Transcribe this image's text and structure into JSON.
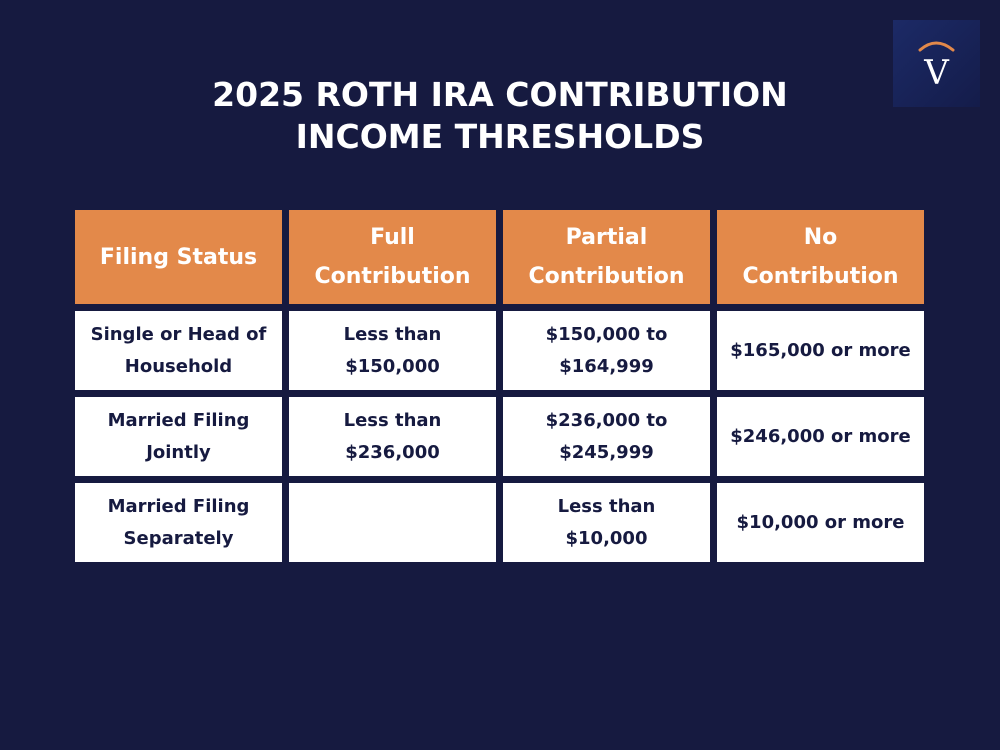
{
  "title": {
    "line1": "2025 ROTH IRA CONTRIBUTION",
    "line2": "INCOME THRESHOLDS"
  },
  "logo": {
    "letter": "V",
    "arc_color": "#e3894a"
  },
  "colors": {
    "background": "#161a40",
    "header": "#e3894a",
    "cell": "#ffffff",
    "text": "#161a40"
  },
  "table": {
    "headers": [
      [
        "Filing Status"
      ],
      [
        "Full",
        "Contribution"
      ],
      [
        "Partial",
        "Contribution"
      ],
      [
        "No",
        "Contribution"
      ]
    ],
    "rows": [
      [
        [
          "Single or Head of",
          "Household"
        ],
        [
          "Less than",
          "$150,000"
        ],
        [
          "$150,000 to",
          "$164,999"
        ],
        [
          "$165,000 or more"
        ]
      ],
      [
        [
          "Married Filing",
          "Jointly"
        ],
        [
          "Less than",
          "$236,000"
        ],
        [
          "$236,000 to",
          "$245,999"
        ],
        [
          "$246,000 or more"
        ]
      ],
      [
        [
          "Married Filing",
          "Separately"
        ],
        [],
        [
          "Less than",
          "$10,000"
        ],
        [
          "$10,000 or more"
        ]
      ]
    ]
  }
}
